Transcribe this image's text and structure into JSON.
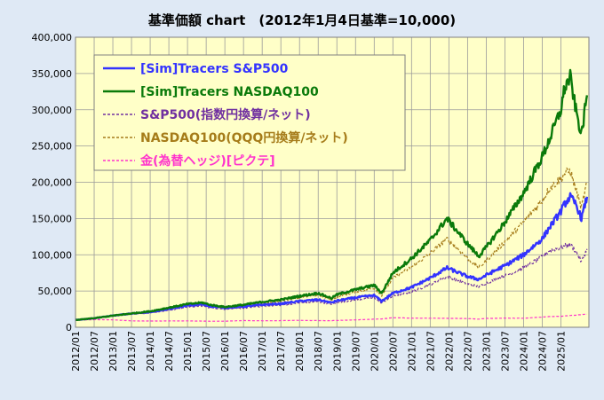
{
  "chart_data": {
    "type": "line",
    "title": "基準価額 chart　(2012年1月4日基準=10,000)",
    "ylim": [
      0,
      400000
    ],
    "yticks": [
      0,
      50000,
      100000,
      150000,
      200000,
      250000,
      300000,
      350000,
      400000
    ],
    "ytick_labels": [
      "0",
      "50,000",
      "100,000",
      "150,000",
      "200,000",
      "250,000",
      "300,000",
      "350,000",
      "400,000"
    ],
    "xlim": [
      2012.0,
      2025.75
    ],
    "xtick_labels": [
      "2012/01",
      "2012/07",
      "2013/01",
      "2013/07",
      "2014/01",
      "2014/07",
      "2015/01",
      "2015/07",
      "2016/01",
      "2016/07",
      "2017/01",
      "2017/07",
      "2018/01",
      "2018/07",
      "2019/01",
      "2019/07",
      "2020/01",
      "2020/07",
      "2021/01",
      "2021/07",
      "2022/01",
      "2022/07",
      "2023/01",
      "2023/07",
      "2024/01",
      "2024/07",
      "2025/01"
    ],
    "grid": true,
    "legend_position": "top-left",
    "colors": {
      "plot_background": "#ffffc8",
      "page_background": "#dfe9f5",
      "grid": "#9a9a9a"
    },
    "x": [
      2012.0,
      2012.5,
      2013.0,
      2013.5,
      2014.0,
      2014.5,
      2015.0,
      2015.4,
      2015.6,
      2016.0,
      2016.5,
      2017.0,
      2017.5,
      2018.0,
      2018.5,
      2018.85,
      2019.0,
      2019.5,
      2020.0,
      2020.2,
      2020.5,
      2021.0,
      2021.5,
      2021.95,
      2022.5,
      2022.8,
      2023.0,
      2023.5,
      2024.0,
      2024.5,
      2024.7,
      2025.0,
      2025.1,
      2025.25,
      2025.4,
      2025.55,
      2025.7
    ],
    "series": [
      {
        "name": "[Sim]Tracers S&P500",
        "color": "#3333ff",
        "dash": "",
        "width": 2.4,
        "values": [
          10000,
          12500,
          16000,
          19000,
          21000,
          25000,
          30000,
          31500,
          29000,
          27000,
          28500,
          31000,
          32500,
          36000,
          38000,
          34000,
          36500,
          41000,
          44000,
          36000,
          47000,
          55000,
          68000,
          82000,
          70000,
          66000,
          72000,
          85000,
          100000,
          122000,
          138000,
          160000,
          170000,
          180000,
          170000,
          150000,
          180000
        ]
      },
      {
        "name": "[Sim]Tracers NASDAQ100",
        "color": "#0a7a0a",
        "dash": "",
        "width": 2.4,
        "values": [
          10000,
          12500,
          16000,
          19000,
          22000,
          27000,
          32000,
          34000,
          31000,
          28000,
          31000,
          35000,
          38000,
          43000,
          47000,
          40000,
          45000,
          52000,
          58000,
          47000,
          75000,
          95000,
          120000,
          150000,
          115000,
          98000,
          110000,
          145000,
          185000,
          235000,
          260000,
          300000,
          330000,
          345000,
          300000,
          265000,
          320000
        ]
      },
      {
        "name": "S&P500(指数円換算/ネット)",
        "color": "#7030a0",
        "dash": "3,2",
        "width": 1.2,
        "values": [
          10000,
          12300,
          15500,
          18000,
          20000,
          23500,
          28000,
          29500,
          27000,
          25000,
          26500,
          29000,
          30500,
          33500,
          35500,
          32000,
          34000,
          38000,
          40500,
          33500,
          43000,
          49000,
          59000,
          70000,
          60000,
          56000,
          61000,
          71000,
          82000,
          97000,
          106000,
          110000,
          112000,
          114000,
          105000,
          90000,
          108000
        ]
      },
      {
        "name": "NASDAQ100(QQQ円換算/ネット)",
        "color": "#a67c1a",
        "dash": "3,2",
        "width": 1.2,
        "values": [
          10000,
          12300,
          15800,
          18500,
          21000,
          25500,
          30000,
          32000,
          29500,
          27000,
          29500,
          33000,
          36000,
          41000,
          44500,
          38000,
          42000,
          49000,
          54000,
          44000,
          68000,
          83000,
          102000,
          122000,
          95000,
          82000,
          92000,
          118000,
          145000,
          175000,
          192000,
          205000,
          212000,
          216000,
          190000,
          165000,
          200000
        ]
      },
      {
        "name": "金(為替ヘッジ)[ピクテ]",
        "color": "#ff33cc",
        "dash": "3,2",
        "width": 1.2,
        "values": [
          10000,
          10500,
          10300,
          8800,
          8600,
          8700,
          8800,
          8600,
          8300,
          8400,
          9200,
          8900,
          9200,
          9500,
          9200,
          9000,
          9400,
          10200,
          11200,
          11500,
          13200,
          12600,
          12500,
          12400,
          12000,
          11200,
          12200,
          12600,
          12400,
          14000,
          14800,
          15200,
          15600,
          16200,
          16800,
          17500,
          18000
        ]
      }
    ]
  }
}
